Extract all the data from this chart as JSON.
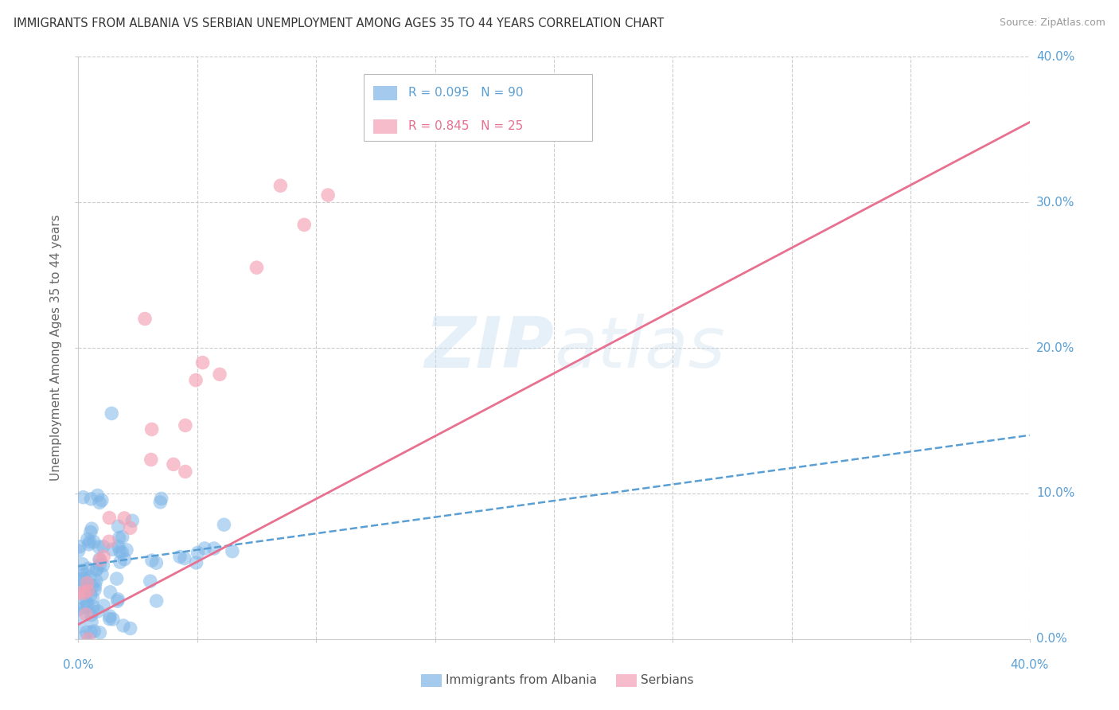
{
  "title": "IMMIGRANTS FROM ALBANIA VS SERBIAN UNEMPLOYMENT AMONG AGES 35 TO 44 YEARS CORRELATION CHART",
  "source": "Source: ZipAtlas.com",
  "ylabel": "Unemployment Among Ages 35 to 44 years",
  "legend_albania": "Immigrants from Albania",
  "legend_serbian": "Serbians",
  "R_albania": "R = 0.095",
  "N_albania": "N = 90",
  "R_serbian": "R = 0.845",
  "N_serbian": "N = 25",
  "color_albania": "#7EB6E8",
  "color_serbian": "#F4A0B5",
  "color_line_albania": "#5A9FD4",
  "color_line_serbian": "#E87090",
  "watermark_zip": "ZIP",
  "watermark_atlas": "atlas",
  "xlim": [
    0.0,
    0.4
  ],
  "ylim": [
    0.0,
    0.4
  ],
  "ytick_values": [
    0.0,
    0.1,
    0.2,
    0.3,
    0.4
  ],
  "ytick_labels": [
    "0.0%",
    "10.0%",
    "20.0%",
    "30.0%",
    "40.0%"
  ],
  "line_albania_x0": 0.0,
  "line_albania_y0": 0.05,
  "line_albania_x1": 0.4,
  "line_albania_y1": 0.14,
  "line_serbian_x0": 0.0,
  "line_serbian_y0": 0.01,
  "line_serbian_x1": 0.4,
  "line_serbian_y1": 0.355
}
